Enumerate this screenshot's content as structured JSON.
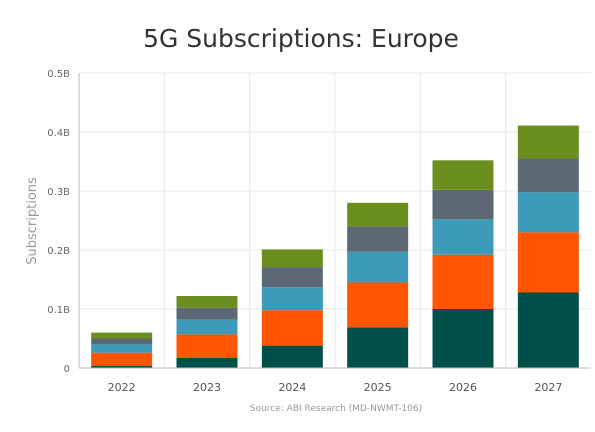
{
  "chart_data": {
    "type": "bar",
    "stacked": true,
    "title": "5G Subscriptions: Europe",
    "ylabel": "Subscriptions",
    "xlabel": "",
    "source": "Source: ABI Research (MD-NWMT-106)",
    "categories": [
      "2022",
      "2023",
      "2024",
      "2025",
      "2026",
      "2027"
    ],
    "ylim": [
      0,
      0.5
    ],
    "yticks": [
      0,
      0.1,
      0.2,
      0.3,
      0.4,
      0.5
    ],
    "ytick_labels": [
      "0",
      "0.1B",
      "0.2B",
      "0.3B",
      "0.4B",
      "0.5B"
    ],
    "grid": true,
    "legend": "none",
    "series": [
      {
        "color": "#00504a",
        "values": [
          0.004,
          0.017,
          0.038,
          0.069,
          0.1,
          0.128
        ]
      },
      {
        "color": "#ff5500",
        "values": [
          0.022,
          0.04,
          0.06,
          0.076,
          0.092,
          0.102
        ]
      },
      {
        "color": "#3d9bb9",
        "values": [
          0.014,
          0.025,
          0.039,
          0.052,
          0.06,
          0.068
        ]
      },
      {
        "color": "#5d6875",
        "values": [
          0.01,
          0.02,
          0.034,
          0.043,
          0.05,
          0.057
        ]
      },
      {
        "color": "#6a8f1e",
        "values": [
          0.01,
          0.02,
          0.03,
          0.04,
          0.05,
          0.056
        ]
      }
    ]
  }
}
